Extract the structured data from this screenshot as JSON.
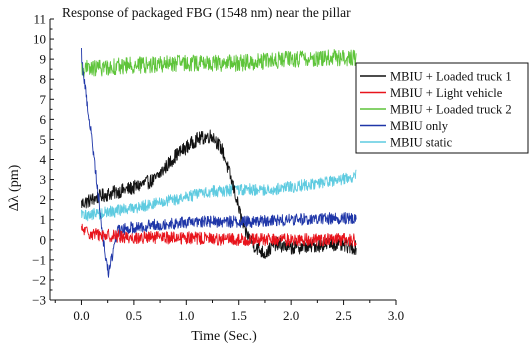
{
  "chart_data": {
    "type": "line",
    "title": "Response of packaged FBG (1548 nm) near the pillar",
    "xlabel": "Time (Sec.)",
    "ylabel": "Δλ (pm)",
    "xlim": [
      -0.3,
      3.0
    ],
    "ylim": [
      -3,
      11
    ],
    "x_ticks": [
      0.0,
      0.5,
      1.0,
      1.5,
      2.0,
      2.5,
      3.0
    ],
    "x_tick_labels": [
      "0.0",
      "0.5",
      "1.0",
      "1.5",
      "2.0",
      "2.5",
      "3.0"
    ],
    "y_ticks": [
      -3,
      -2,
      -1,
      0,
      1,
      2,
      3,
      4,
      5,
      6,
      7,
      8,
      9,
      10,
      11
    ],
    "y_tick_labels": [
      "−3",
      "−2",
      "−1",
      "0",
      "1",
      "2",
      "3",
      "4",
      "5",
      "6",
      "7",
      "8",
      "9",
      "10",
      "11"
    ],
    "grid": false,
    "legend_position": "right",
    "series": [
      {
        "name": "MBIU + Loaded truck 1",
        "color": "#111111",
        "noise": 0.35,
        "points": [
          [
            0.0,
            1.8
          ],
          [
            0.2,
            2.2
          ],
          [
            0.5,
            2.6
          ],
          [
            0.7,
            3.0
          ],
          [
            0.9,
            4.2
          ],
          [
            1.1,
            5.0
          ],
          [
            1.25,
            5.2
          ],
          [
            1.35,
            4.4
          ],
          [
            1.45,
            2.6
          ],
          [
            1.5,
            1.6
          ],
          [
            1.55,
            0.5
          ],
          [
            1.65,
            -0.3
          ],
          [
            1.75,
            -0.7
          ],
          [
            1.85,
            -0.2
          ],
          [
            2.0,
            -0.4
          ],
          [
            2.2,
            -0.3
          ],
          [
            2.4,
            -0.2
          ],
          [
            2.62,
            -0.4
          ]
        ]
      },
      {
        "name": "MBIU + Light vehicle",
        "color": "#e8141c",
        "noise": 0.32,
        "points": [
          [
            0.0,
            0.5
          ],
          [
            0.1,
            0.3
          ],
          [
            0.5,
            0.1
          ],
          [
            1.0,
            0.1
          ],
          [
            1.5,
            0.0
          ],
          [
            2.0,
            0.0
          ],
          [
            2.62,
            0.0
          ]
        ]
      },
      {
        "name": "MBIU + Loaded truck 2",
        "color": "#5ec43a",
        "noise": 0.42,
        "points": [
          [
            0.0,
            8.5
          ],
          [
            0.5,
            8.7
          ],
          [
            1.0,
            8.8
          ],
          [
            1.5,
            8.8
          ],
          [
            2.0,
            9.0
          ],
          [
            2.62,
            9.1
          ]
        ]
      },
      {
        "name": "MBIU only",
        "color": "#1f36a8",
        "noise": 0.3,
        "points": [
          [
            0.0,
            9.3
          ],
          [
            0.02,
            8.2
          ],
          [
            0.06,
            6.6
          ],
          [
            0.1,
            5.0
          ],
          [
            0.14,
            3.2
          ],
          [
            0.18,
            1.3
          ],
          [
            0.22,
            -0.5
          ],
          [
            0.26,
            -1.7
          ],
          [
            0.3,
            -0.6
          ],
          [
            0.34,
            0.4
          ],
          [
            0.45,
            0.6
          ],
          [
            0.8,
            0.8
          ],
          [
            1.2,
            0.9
          ],
          [
            1.6,
            0.9
          ],
          [
            2.0,
            1.0
          ],
          [
            2.62,
            1.1
          ]
        ]
      },
      {
        "name": "MBIU static",
        "color": "#5fcbe0",
        "noise": 0.3,
        "points": [
          [
            0.0,
            1.2
          ],
          [
            0.3,
            1.4
          ],
          [
            0.6,
            1.7
          ],
          [
            0.9,
            2.0
          ],
          [
            1.2,
            2.4
          ],
          [
            1.5,
            2.5
          ],
          [
            1.8,
            2.5
          ],
          [
            2.1,
            2.7
          ],
          [
            2.4,
            2.9
          ],
          [
            2.62,
            3.2
          ]
        ]
      }
    ]
  }
}
